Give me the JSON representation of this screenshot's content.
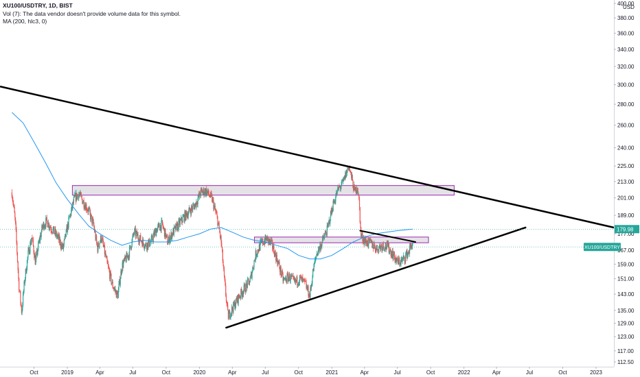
{
  "legend": {
    "symbol": "XU100/USDTRY, 1D, BIST",
    "volume": "Vol (7): The data vendor doesn't provide volume data for this symbol.",
    "ma": "MA (200, hlc3, 0)"
  },
  "price_axis": {
    "currency": "USD",
    "last_price": "179.98",
    "symbol_tag": "XU100/USDTRY"
  },
  "colors": {
    "up": "#26a69a",
    "down": "#ef5350",
    "ma": "#2196f3",
    "trendline": "#000000",
    "zone_border": "#9c27b0",
    "zone_fill": "#e0dde3",
    "price_tag": "#26a69a",
    "axis_border": "#d1d4dc"
  },
  "chart_data": {
    "type": "candlestick",
    "title": "XU100/USDTRY, 1D, BIST",
    "scale": "log",
    "y_ticks": [
      112.5,
      117.0,
      123.0,
      129.0,
      135.0,
      143.0,
      151.0,
      159.0,
      167.0,
      177.0,
      189.0,
      201.0,
      213.0,
      225.0,
      240.0,
      260.0,
      280.0,
      300.0,
      320.0,
      340.0,
      360.0,
      380.0,
      400.0
    ],
    "y_tick_labels": [
      "112.50",
      "117.00",
      "123.00",
      "129.00",
      "135.00",
      "143.00",
      "151.00",
      "159.00",
      "167.00",
      "177.00",
      "189.00",
      "201.00",
      "213.00",
      "225.00",
      "240.00",
      "260.00",
      "280.00",
      "300.00",
      "320.00",
      "340.00",
      "360.00",
      "380.00",
      "400.00"
    ],
    "x_ticks": [
      {
        "label": "Oct",
        "date": "2018-10-01"
      },
      {
        "label": "2019",
        "date": "2019-01-01"
      },
      {
        "label": "Apr",
        "date": "2019-04-01"
      },
      {
        "label": "Jul",
        "date": "2019-07-01"
      },
      {
        "label": "Oct",
        "date": "2019-10-01"
      },
      {
        "label": "2020",
        "date": "2020-01-01"
      },
      {
        "label": "Apr",
        "date": "2020-04-01"
      },
      {
        "label": "Jul",
        "date": "2020-07-01"
      },
      {
        "label": "Oct",
        "date": "2020-10-01"
      },
      {
        "label": "2021",
        "date": "2021-01-01"
      },
      {
        "label": "Apr",
        "date": "2021-04-01"
      },
      {
        "label": "Jul",
        "date": "2021-07-01"
      },
      {
        "label": "Oct",
        "date": "2021-10-01"
      },
      {
        "label": "2022",
        "date": "2022-01-01"
      },
      {
        "label": "Apr",
        "date": "2022-04-01"
      },
      {
        "label": "Jul",
        "date": "2022-07-01"
      },
      {
        "label": "Oct",
        "date": "2022-10-01"
      },
      {
        "label": "2023",
        "date": "2023-01-01"
      }
    ],
    "price_path": [
      [
        "2018-08-01",
        205
      ],
      [
        "2018-08-10",
        185
      ],
      [
        "2018-08-20",
        148
      ],
      [
        "2018-08-28",
        134
      ],
      [
        "2018-09-05",
        150
      ],
      [
        "2018-09-15",
        165
      ],
      [
        "2018-09-25",
        175
      ],
      [
        "2018-10-05",
        160
      ],
      [
        "2018-10-15",
        172
      ],
      [
        "2018-10-25",
        182
      ],
      [
        "2018-11-05",
        185
      ],
      [
        "2018-11-20",
        180
      ],
      [
        "2018-12-05",
        175
      ],
      [
        "2018-12-20",
        168
      ],
      [
        "2019-01-05",
        185
      ],
      [
        "2019-01-20",
        200
      ],
      [
        "2019-02-01",
        204
      ],
      [
        "2019-02-15",
        198
      ],
      [
        "2019-03-01",
        192
      ],
      [
        "2019-03-15",
        182
      ],
      [
        "2019-03-25",
        168
      ],
      [
        "2019-04-05",
        175
      ],
      [
        "2019-04-20",
        160
      ],
      [
        "2019-05-05",
        148
      ],
      [
        "2019-05-20",
        142
      ],
      [
        "2019-06-01",
        158
      ],
      [
        "2019-06-20",
        165
      ],
      [
        "2019-07-05",
        178
      ],
      [
        "2019-07-20",
        174
      ],
      [
        "2019-08-05",
        170
      ],
      [
        "2019-08-20",
        172
      ],
      [
        "2019-09-05",
        180
      ],
      [
        "2019-09-20",
        183
      ],
      [
        "2019-10-05",
        172
      ],
      [
        "2019-10-20",
        178
      ],
      [
        "2019-11-05",
        183
      ],
      [
        "2019-11-20",
        188
      ],
      [
        "2019-12-05",
        192
      ],
      [
        "2019-12-20",
        196
      ],
      [
        "2020-01-05",
        205
      ],
      [
        "2020-01-20",
        206
      ],
      [
        "2020-02-05",
        200
      ],
      [
        "2020-02-20",
        186
      ],
      [
        "2020-03-01",
        172
      ],
      [
        "2020-03-10",
        150
      ],
      [
        "2020-03-20",
        132
      ],
      [
        "2020-04-05",
        137
      ],
      [
        "2020-04-20",
        142
      ],
      [
        "2020-05-05",
        146
      ],
      [
        "2020-05-20",
        150
      ],
      [
        "2020-06-05",
        165
      ],
      [
        "2020-06-20",
        171
      ],
      [
        "2020-07-05",
        174
      ],
      [
        "2020-07-20",
        170
      ],
      [
        "2020-08-05",
        160
      ],
      [
        "2020-08-20",
        150
      ],
      [
        "2020-09-05",
        152
      ],
      [
        "2020-09-20",
        149
      ],
      [
        "2020-10-05",
        151
      ],
      [
        "2020-10-20",
        148
      ],
      [
        "2020-11-01",
        142
      ],
      [
        "2020-11-10",
        155
      ],
      [
        "2020-11-20",
        165
      ],
      [
        "2020-12-05",
        172
      ],
      [
        "2020-12-20",
        180
      ],
      [
        "2021-01-05",
        197
      ],
      [
        "2021-01-20",
        208
      ],
      [
        "2021-02-01",
        212
      ],
      [
        "2021-02-10",
        220
      ],
      [
        "2021-02-17",
        225
      ],
      [
        "2021-02-25",
        215
      ],
      [
        "2021-03-05",
        205
      ],
      [
        "2021-03-12",
        210
      ],
      [
        "2021-03-18",
        196
      ],
      [
        "2021-03-22",
        176
      ],
      [
        "2021-04-05",
        172
      ],
      [
        "2021-04-20",
        171
      ],
      [
        "2021-05-05",
        168
      ],
      [
        "2021-05-20",
        170
      ],
      [
        "2021-06-05",
        169
      ],
      [
        "2021-06-20",
        164
      ],
      [
        "2021-07-01",
        160
      ],
      [
        "2021-07-15",
        161
      ],
      [
        "2021-08-01",
        166
      ],
      [
        "2021-08-13",
        172
      ]
    ],
    "moving_average": {
      "name": "MA (200, hlc3, 0)",
      "points": [
        [
          "2018-08-01",
          272
        ],
        [
          "2018-09-01",
          262
        ],
        [
          "2018-10-01",
          245
        ],
        [
          "2018-11-01",
          228
        ],
        [
          "2018-12-01",
          212
        ],
        [
          "2019-01-01",
          200
        ],
        [
          "2019-02-01",
          190
        ],
        [
          "2019-03-01",
          182
        ],
        [
          "2019-04-01",
          177
        ],
        [
          "2019-05-01",
          173
        ],
        [
          "2019-06-01",
          170
        ],
        [
          "2019-07-01",
          172
        ],
        [
          "2019-08-01",
          173
        ],
        [
          "2019-09-01",
          172
        ],
        [
          "2019-10-01",
          172
        ],
        [
          "2019-11-01",
          173
        ],
        [
          "2019-12-01",
          175
        ],
        [
          "2020-01-01",
          177
        ],
        [
          "2020-02-01",
          180
        ],
        [
          "2020-03-01",
          181
        ],
        [
          "2020-04-01",
          178
        ],
        [
          "2020-05-01",
          175
        ],
        [
          "2020-06-01",
          173
        ],
        [
          "2020-07-01",
          172
        ],
        [
          "2020-08-01",
          170
        ],
        [
          "2020-09-01",
          168
        ],
        [
          "2020-10-01",
          164
        ],
        [
          "2020-11-01",
          162
        ],
        [
          "2020-12-01",
          162
        ],
        [
          "2021-01-01",
          164
        ],
        [
          "2021-02-01",
          168
        ],
        [
          "2021-03-01",
          172
        ],
        [
          "2021-04-01",
          175
        ],
        [
          "2021-05-01",
          177
        ],
        [
          "2021-06-01",
          178
        ],
        [
          "2021-07-01",
          179
        ],
        [
          "2021-08-13",
          180
        ]
      ]
    },
    "trendlines": [
      {
        "from": [
          "2018-07-01",
          298
        ],
        "to": [
          "2023-03-10",
          180
        ]
      },
      {
        "from": [
          "2020-03-15",
          127
        ],
        "to": [
          "2022-06-20",
          181
        ]
      },
      {
        "from": [
          "2021-03-20",
          179
        ],
        "to": [
          "2021-08-20",
          172
        ]
      }
    ],
    "zones": [
      {
        "from": [
          "2019-01-15",
          210
        ],
        "to": [
          "2021-12-05",
          203
        ]
      },
      {
        "from": [
          "2020-06-01",
          175
        ],
        "to": [
          "2021-09-25",
          171.5
        ]
      }
    ],
    "last_price": 179.98,
    "symbol_level": 169
  }
}
